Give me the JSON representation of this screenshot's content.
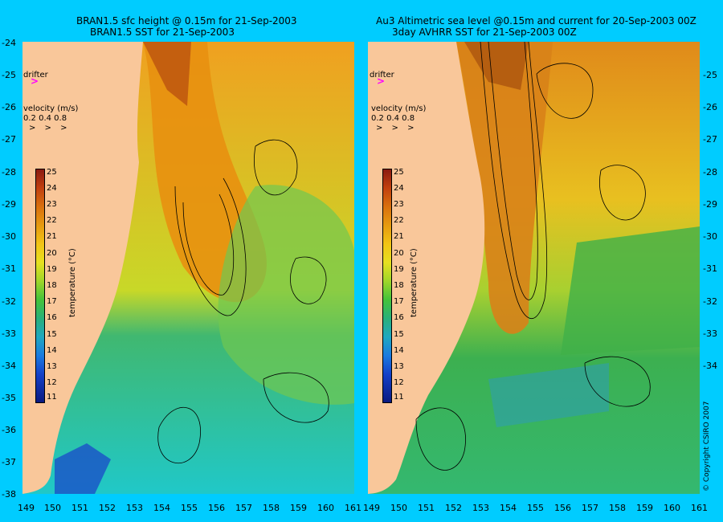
{
  "left_panel": {
    "title_line1": "BRAN1.5 sfc height @ 0.15m for 21-Sep-2003",
    "title_line2": "BRAN1.5 SST for 21-Sep-2003"
  },
  "right_panel": {
    "title_line1": "Au3 Altimetric sea level  @0.15m and current for 20-Sep-2003 00Z",
    "title_line2": "3day AVHRR SST for 21-Sep-2003 00Z"
  },
  "y_axis_labels": [
    "-24",
    "-25",
    "-26",
    "-27",
    "-28",
    "-29",
    "-30",
    "-31",
    "-32",
    "-33",
    "-34",
    "-35",
    "-36",
    "-37",
    "-38"
  ],
  "x_axis_labels": [
    "149",
    "150",
    "151",
    "152",
    "153",
    "154",
    "155",
    "156",
    "157",
    "158",
    "159",
    "160",
    "161"
  ],
  "drifter_label": "drifter",
  "drifter_mark": ">",
  "velocity_title": "velocity (m/s)",
  "velocity_scale": "0.2 0.4 0.8",
  "velocity_arrows": "> > >",
  "colorbar": {
    "title": "temperature (°C)",
    "ticks": [
      "25",
      "24",
      "23",
      "22",
      "21",
      "20",
      "19",
      "18",
      "17",
      "16",
      "15",
      "14",
      "13",
      "12",
      "11"
    ]
  },
  "copyright": "© Copyright CSIRO 2007",
  "colors": {
    "background": "#00ccff",
    "land": "#f9c79a",
    "drifter": "#ff00ff"
  }
}
